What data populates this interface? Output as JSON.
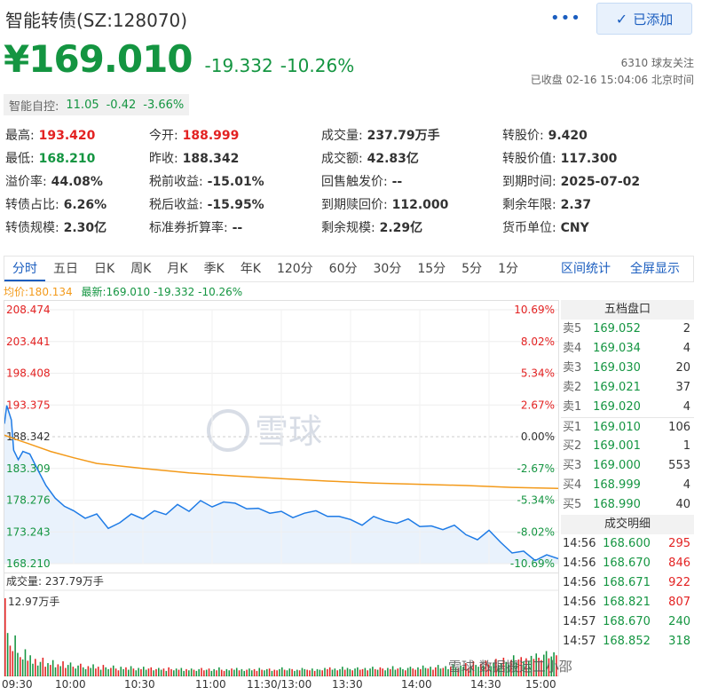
{
  "header": {
    "title": "智能转债(SZ:128070)",
    "more_label": "•••",
    "add_label": "已添加",
    "price": "¥169.010",
    "change": "-19.332",
    "change_pct": "-10.26%",
    "followers": "6310 球友关注",
    "status": "已收盘 02-16 15:04:06 北京时间"
  },
  "underlying": {
    "name": "智能自控:",
    "price": "11.05",
    "change": "-0.42",
    "pct": "-3.66%"
  },
  "stats": [
    {
      "label": "最高:",
      "value": "193.420",
      "color": "red"
    },
    {
      "label": "今开:",
      "value": "188.999",
      "color": "red"
    },
    {
      "label": "成交量:",
      "value": "237.79万手",
      "color": ""
    },
    {
      "label": "转股价:",
      "value": "9.420",
      "color": ""
    },
    {
      "label": "最低:",
      "value": "168.210",
      "color": "green"
    },
    {
      "label": "昨收:",
      "value": "188.342",
      "color": ""
    },
    {
      "label": "成交额:",
      "value": "42.83亿",
      "color": ""
    },
    {
      "label": "转股价值:",
      "value": "117.300",
      "color": ""
    },
    {
      "label": "溢价率:",
      "value": "44.08%",
      "color": ""
    },
    {
      "label": "税前收益:",
      "value": "-15.01%",
      "color": ""
    },
    {
      "label": "回售触发价:",
      "value": "--",
      "color": ""
    },
    {
      "label": "到期时间:",
      "value": "2025-07-02",
      "color": ""
    },
    {
      "label": "转债占比:",
      "value": "6.26%",
      "color": ""
    },
    {
      "label": "税后收益:",
      "value": "-15.95%",
      "color": ""
    },
    {
      "label": "到期赎回价:",
      "value": "112.000",
      "color": ""
    },
    {
      "label": "剩余年限:",
      "value": "2.37",
      "color": ""
    },
    {
      "label": "转债规模:",
      "value": "2.30亿",
      "color": ""
    },
    {
      "label": "标准券折算率:",
      "value": "--",
      "color": ""
    },
    {
      "label": "剩余规模:",
      "value": "2.29亿",
      "color": ""
    },
    {
      "label": "货币单位:",
      "value": "CNY",
      "color": ""
    }
  ],
  "tabs": [
    "分时",
    "五日",
    "日K",
    "周K",
    "月K",
    "季K",
    "年K",
    "120分",
    "60分",
    "30分",
    "15分",
    "5分",
    "1分"
  ],
  "tab_actions": [
    "区间统计",
    "全屏显示"
  ],
  "legend": {
    "avg": "均价:180.134",
    "latest": "最新:169.010 -19.332 -10.26%"
  },
  "chart_data": {
    "type": "line",
    "y_left_ticks": [
      "208.474",
      "203.441",
      "198.408",
      "193.375",
      "188.342",
      "183.309",
      "178.276",
      "173.243",
      "168.210"
    ],
    "y_right_ticks": [
      "10.69%",
      "8.02%",
      "5.34%",
      "2.67%",
      "0.00%",
      "-2.67%",
      "-5.34%",
      "-8.02%",
      "-10.69%"
    ],
    "ylim": [
      168.21,
      208.474
    ],
    "prev_close": 188.342,
    "x_ticks": [
      "09:30",
      "10:00",
      "10:30",
      "11:00",
      "11:30/13:00",
      "13:30",
      "14:00",
      "14:30",
      "15:00"
    ],
    "series": [
      {
        "name": "最新",
        "color": "#1e7be6",
        "x": [
          0,
          1,
          3,
          4,
          6,
          8,
          11,
          14,
          18,
          22,
          26,
          30,
          35,
          40,
          45,
          50,
          55,
          60,
          65,
          70,
          75,
          80,
          85,
          90,
          95,
          100,
          105,
          110,
          115,
          120,
          125,
          130,
          135,
          140,
          145,
          150,
          155,
          160,
          165,
          170,
          175,
          180,
          185,
          190,
          195,
          200,
          205,
          210,
          215,
          220,
          225,
          230,
          235,
          240
        ],
        "y": [
          190.4,
          193.3,
          191.0,
          186.2,
          184.7,
          186.0,
          185.6,
          183.4,
          180.6,
          178.6,
          177.3,
          176.6,
          175.4,
          176.1,
          173.8,
          174.7,
          176.1,
          175.3,
          176.6,
          176.0,
          177.6,
          176.5,
          178.2,
          177.2,
          178.0,
          177.8,
          176.9,
          177.0,
          176.2,
          176.5,
          175.5,
          176.2,
          176.6,
          175.7,
          175.7,
          175.2,
          174.3,
          175.7,
          175.0,
          174.6,
          175.3,
          174.1,
          174.2,
          173.6,
          174.3,
          172.8,
          172.0,
          173.5,
          171.6,
          169.9,
          170.2,
          168.7,
          169.6,
          169.0
        ]
      },
      {
        "name": "均价",
        "color": "#f39a1a",
        "x": [
          0,
          5,
          10,
          20,
          30,
          40,
          60,
          80,
          100,
          120,
          140,
          160,
          180,
          200,
          220,
          240
        ],
        "y": [
          188.6,
          187.9,
          187.3,
          186.0,
          185.0,
          184.1,
          183.3,
          182.6,
          182.1,
          181.7,
          181.3,
          181.0,
          180.8,
          180.6,
          180.3,
          180.134
        ]
      }
    ]
  },
  "volume": {
    "label": "成交量: 237.79万手",
    "max_label": "12.97万手",
    "max": 12.97,
    "values": [
      12.97,
      7.2,
      5.1,
      4.2,
      6.8,
      3.9,
      3.2,
      2.8,
      4.5,
      2.6,
      3.5,
      2.1,
      2.9,
      1.8,
      2.4,
      3.1,
      1.6,
      2.2,
      1.9,
      2.7,
      1.5,
      2.0,
      1.7,
      2.5,
      1.4,
      1.9,
      2.3,
      1.6,
      1.3,
      1.8,
      2.1,
      1.5,
      1.2,
      1.7,
      1.4,
      2.0,
      1.3,
      1.6,
      1.1,
      1.9,
      1.5,
      1.2,
      1.4,
      1.8,
      1.3,
      1.0,
      1.6,
      1.2,
      1.5,
      1.1,
      1.7,
      1.3,
      1.0,
      1.4,
      1.2,
      1.6,
      1.1,
      1.3,
      1.5,
      1.0,
      1.2,
      1.4,
      1.1,
      1.3,
      0.9,
      1.5,
      1.2,
      1.0,
      1.3,
      1.1,
      1.4,
      0.9,
      1.2,
      1.0,
      1.3,
      1.1,
      0.9,
      1.2,
      1.4,
      1.0,
      1.1,
      1.3,
      0.9,
      1.2,
      1.0,
      1.5,
      1.1,
      0.9,
      1.2,
      1.0,
      1.3,
      1.1,
      1.4,
      1.0,
      1.2,
      0.9,
      1.1,
      1.3,
      1.0,
      1.2,
      0.9,
      1.4,
      1.1,
      1.0,
      1.2,
      1.3,
      0.9,
      1.1,
      1.0,
      1.2,
      1.5,
      1.1,
      1.0,
      1.3,
      1.2,
      0.9,
      1.1,
      1.0,
      1.4,
      1.2,
      1.1,
      1.0,
      1.3,
      0.9,
      1.2,
      1.1,
      1.0,
      1.4,
      1.2,
      1.5,
      1.1,
      1.3,
      1.0,
      1.2,
      1.6,
      1.1,
      1.4,
      1.2,
      1.0,
      1.3,
      1.5,
      1.1,
      1.2,
      1.4,
      1.0,
      1.3,
      1.6,
      1.2,
      1.1,
      1.5,
      1.3,
      1.0,
      1.4,
      1.2,
      1.7,
      1.1,
      1.3,
      1.5,
      1.2,
      1.0,
      1.4,
      1.6,
      1.3,
      1.1,
      1.5,
      1.2,
      1.8,
      1.4,
      1.3,
      1.6,
      1.1,
      1.5,
      1.9,
      1.3,
      1.4,
      1.7,
      1.2,
      1.6,
      2.0,
      1.5,
      1.3,
      1.8,
      1.6,
      2.2,
      1.4,
      1.7,
      2.5,
      1.9,
      1.6,
      2.1,
      1.8,
      2.6,
      2.0,
      1.7,
      2.3,
      2.9,
      1.9,
      2.2,
      3.1,
      2.4,
      2.0,
      2.7,
      3.5,
      2.3,
      2.8,
      3.2,
      2.5,
      3.0,
      2.6,
      3.4,
      2.9,
      3.8,
      3.1,
      2.7,
      3.6,
      4.2,
      3.0,
      3.3,
      4.0,
      3.5
    ],
    "colors": "mixed"
  },
  "orderbook": {
    "title": "五档盘口",
    "asks": [
      {
        "label": "卖5",
        "price": "169.052",
        "qty": "2"
      },
      {
        "label": "卖4",
        "price": "169.034",
        "qty": "4"
      },
      {
        "label": "卖3",
        "price": "169.030",
        "qty": "20"
      },
      {
        "label": "卖2",
        "price": "169.021",
        "qty": "37"
      },
      {
        "label": "卖1",
        "price": "169.020",
        "qty": "4"
      }
    ],
    "bids": [
      {
        "label": "买1",
        "price": "169.010",
        "qty": "106"
      },
      {
        "label": "买2",
        "price": "169.001",
        "qty": "1"
      },
      {
        "label": "买3",
        "price": "169.000",
        "qty": "553"
      },
      {
        "label": "买4",
        "price": "168.999",
        "qty": "4"
      },
      {
        "label": "买5",
        "price": "168.990",
        "qty": "40"
      }
    ],
    "trades_title": "成交明细",
    "trades": [
      {
        "time": "14:56",
        "price": "168.600",
        "qty": "295",
        "side": "buy"
      },
      {
        "time": "14:56",
        "price": "168.670",
        "qty": "846",
        "side": "buy"
      },
      {
        "time": "14:56",
        "price": "168.671",
        "qty": "922",
        "side": "buy"
      },
      {
        "time": "14:56",
        "price": "168.821",
        "qty": "807",
        "side": "buy"
      },
      {
        "time": "14:57",
        "price": "168.670",
        "qty": "240",
        "side": "sell"
      },
      {
        "time": "14:57",
        "price": "168.852",
        "qty": "318",
        "side": "sell"
      }
    ]
  },
  "watermark": {
    "center": "雪球",
    "bottom": "雪球 数据搬运工小邵"
  }
}
